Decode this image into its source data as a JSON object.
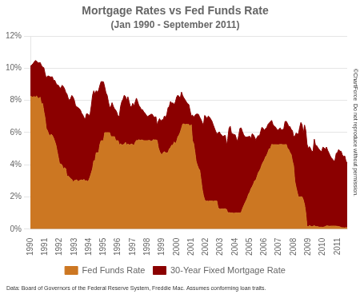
{
  "chart_data": {
    "type": "area",
    "title": "Mortgage Rates vs Fed Funds Rate",
    "subtitle": "(Jan 1990 - September 2011)",
    "annotations": [
      "Data: Board of Governors of the Federal Reserve System, Freddie Mac. Assumes conforming loan traits.",
      "©ChartForce  Do not reproduce without permission."
    ],
    "legend": "bottom",
    "grid": "y",
    "ylim": [
      0,
      12
    ],
    "yticks": [
      {
        "value": 0,
        "label": "0%"
      },
      {
        "value": 2,
        "label": "2%"
      },
      {
        "value": 4,
        "label": "4%"
      },
      {
        "value": 6,
        "label": "6%"
      },
      {
        "value": 8,
        "label": "8%"
      },
      {
        "value": 10,
        "label": "10%"
      },
      {
        "value": 12,
        "label": "12%"
      }
    ],
    "categories": [
      "1990",
      null,
      null,
      null,
      null,
      null,
      null,
      null,
      null,
      null,
      null,
      null,
      "1991",
      null,
      null,
      null,
      null,
      null,
      null,
      null,
      null,
      null,
      null,
      null,
      "1992",
      null,
      null,
      null,
      null,
      null,
      null,
      null,
      null,
      null,
      null,
      null,
      "1993",
      null,
      null,
      null,
      null,
      null,
      null,
      null,
      null,
      null,
      null,
      null,
      "1994",
      null,
      null,
      null,
      null,
      null,
      null,
      null,
      null,
      null,
      null,
      null,
      "1995",
      null,
      null,
      null,
      null,
      null,
      null,
      null,
      null,
      null,
      null,
      null,
      "1996",
      null,
      null,
      null,
      null,
      null,
      null,
      null,
      null,
      null,
      null,
      null,
      "1997",
      null,
      null,
      null,
      null,
      null,
      null,
      null,
      null,
      null,
      null,
      null,
      "1998",
      null,
      null,
      null,
      null,
      null,
      null,
      null,
      null,
      null,
      null,
      null,
      "1999",
      null,
      null,
      null,
      null,
      null,
      null,
      null,
      null,
      null,
      null,
      null,
      "2000",
      null,
      null,
      null,
      null,
      null,
      null,
      null,
      null,
      null,
      null,
      null,
      "2001",
      null,
      null,
      null,
      null,
      null,
      null,
      null,
      null,
      null,
      null,
      null,
      "2002",
      null,
      null,
      null,
      null,
      null,
      null,
      null,
      null,
      null,
      null,
      null,
      "2003",
      null,
      null,
      null,
      null,
      null,
      null,
      null,
      null,
      null,
      null,
      null,
      "2004",
      null,
      null,
      null,
      null,
      null,
      null,
      null,
      null,
      null,
      null,
      null,
      "2005",
      null,
      null,
      null,
      null,
      null,
      null,
      null,
      null,
      null,
      null,
      null,
      "2006",
      null,
      null,
      null,
      null,
      null,
      null,
      null,
      null,
      null,
      null,
      null,
      "2007",
      null,
      null,
      null,
      null,
      null,
      null,
      null,
      null,
      null,
      null,
      null,
      "2008",
      null,
      null,
      null,
      null,
      null,
      null,
      null,
      null,
      null,
      null,
      null,
      "2009",
      null,
      null,
      null,
      null,
      null,
      null,
      null,
      null,
      null,
      null,
      null,
      "2010",
      null,
      null,
      null,
      null,
      null,
      null,
      null,
      null,
      null,
      null,
      null,
      "2011",
      null,
      null,
      null,
      null,
      null,
      null,
      null,
      null
    ],
    "series": [
      {
        "name": "Fed Funds Rate",
        "color": "#CC7722",
        "values": [
          8.25,
          8.24,
          8.19,
          8.26,
          8.16,
          8.29,
          8.15,
          8.13,
          8.2,
          7.76,
          7.81,
          7.31,
          6.91,
          6.25,
          6.12,
          5.91,
          5.78,
          5.9,
          5.82,
          5.66,
          5.45,
          5.21,
          4.81,
          4.43,
          4.03,
          4.06,
          3.98,
          3.73,
          3.82,
          3.76,
          3.25,
          3.3,
          3.22,
          3.13,
          3.09,
          2.92,
          3.02,
          3.03,
          3.07,
          2.96,
          3.0,
          3.04,
          3.06,
          3.03,
          3.09,
          2.99,
          3.02,
          2.96,
          3.05,
          3.25,
          3.5,
          3.75,
          4.25,
          4.25,
          4.75,
          4.75,
          4.75,
          5.25,
          5.5,
          5.5,
          5.5,
          6.0,
          6.0,
          6.0,
          6.0,
          6.0,
          5.75,
          5.75,
          5.75,
          5.75,
          5.5,
          5.5,
          5.5,
          5.22,
          5.31,
          5.22,
          5.25,
          5.27,
          5.4,
          5.22,
          5.3,
          5.24,
          5.25,
          5.29,
          5.25,
          5.19,
          5.39,
          5.51,
          5.5,
          5.56,
          5.52,
          5.54,
          5.54,
          5.5,
          5.5,
          5.5,
          5.5,
          5.51,
          5.51,
          5.45,
          5.49,
          5.56,
          5.54,
          5.55,
          5.51,
          5.07,
          4.83,
          4.68,
          4.63,
          4.76,
          4.81,
          4.74,
          4.74,
          4.76,
          4.99,
          5.07,
          5.22,
          5.2,
          5.42,
          5.3,
          5.45,
          5.73,
          5.85,
          6.02,
          6.27,
          6.53,
          6.54,
          6.5,
          6.52,
          6.51,
          6.51,
          6.4,
          6.5,
          5.49,
          5.31,
          4.8,
          4.21,
          3.97,
          3.77,
          3.65,
          3.07,
          2.49,
          2.09,
          1.82,
          1.73,
          1.75,
          1.73,
          1.75,
          1.75,
          1.75,
          1.73,
          1.74,
          1.75,
          1.75,
          1.34,
          1.24,
          1.24,
          1.26,
          1.25,
          1.26,
          1.26,
          1.22,
          1.01,
          1.03,
          1.01,
          1.01,
          1.0,
          0.98,
          1.0,
          1.01,
          1.0,
          1.0,
          1.0,
          1.03,
          1.26,
          1.43,
          1.61,
          1.76,
          1.93,
          2.16,
          2.28,
          2.5,
          2.63,
          2.79,
          3.0,
          3.04,
          3.26,
          3.5,
          3.62,
          3.78,
          4.0,
          4.16,
          4.29,
          4.49,
          4.59,
          4.79,
          5.0,
          5.0,
          5.26,
          5.25,
          5.25,
          5.25,
          5.25,
          5.24,
          5.25,
          5.26,
          5.26,
          5.25,
          5.25,
          5.25,
          5.26,
          5.02,
          4.94,
          4.76,
          4.65,
          4.24,
          3.94,
          2.98,
          2.61,
          2.28,
          2.0,
          2.0,
          2.01,
          2.0,
          1.81,
          1.51,
          1.0,
          0.16,
          0.15,
          0.22,
          0.18,
          0.15,
          0.18,
          0.21,
          0.16,
          0.16,
          0.15,
          0.12,
          0.12,
          0.12,
          0.11,
          0.13,
          0.16,
          0.2,
          0.2,
          0.18,
          0.18,
          0.19,
          0.19,
          0.19,
          0.19,
          0.18,
          0.17,
          0.16,
          0.14,
          0.1,
          0.09,
          0.09,
          0.07,
          0.1,
          0.08
        ]
      },
      {
        "name": "30-Year Fixed Mortgage Rate",
        "color": "#8B0000",
        "values": [
          10.13,
          10.2,
          10.27,
          10.38,
          10.48,
          10.45,
          10.35,
          10.34,
          10.36,
          10.18,
          10.07,
          10.04,
          9.69,
          9.37,
          9.51,
          9.52,
          9.47,
          9.46,
          9.47,
          9.24,
          9.25,
          9.07,
          8.96,
          8.94,
          8.8,
          8.76,
          8.94,
          8.87,
          8.73,
          8.51,
          8.4,
          8.14,
          8.0,
          8.12,
          8.31,
          8.21,
          8.02,
          7.69,
          7.6,
          7.56,
          7.5,
          7.41,
          7.21,
          7.1,
          6.93,
          6.83,
          7.17,
          7.17,
          7.06,
          7.15,
          7.68,
          8.32,
          8.6,
          8.4,
          8.61,
          8.51,
          8.64,
          8.93,
          9.17,
          9.17,
          9.15,
          8.83,
          8.47,
          8.32,
          7.91,
          7.57,
          7.61,
          7.86,
          7.64,
          7.48,
          7.4,
          7.24,
          6.99,
          7.03,
          7.62,
          7.93,
          8.07,
          8.32,
          8.25,
          8.0,
          8.23,
          7.92,
          7.62,
          7.6,
          7.82,
          7.65,
          7.9,
          8.14,
          7.94,
          7.69,
          7.59,
          7.43,
          7.43,
          7.29,
          7.21,
          7.1,
          6.99,
          7.04,
          7.09,
          7.14,
          7.14,
          7.0,
          6.95,
          6.99,
          6.47,
          6.71,
          6.87,
          6.72,
          6.79,
          6.81,
          7.04,
          6.92,
          7.15,
          7.55,
          7.63,
          7.94,
          7.82,
          7.85,
          7.74,
          7.91,
          8.21,
          8.33,
          8.24,
          8.15,
          8.52,
          8.29,
          8.15,
          8.03,
          7.91,
          7.8,
          7.75,
          7.38,
          7.03,
          7.09,
          6.95,
          7.07,
          7.14,
          7.16,
          7.13,
          6.95,
          6.82,
          6.62,
          6.45,
          7.07,
          7.0,
          6.86,
          7.03,
          6.96,
          6.84,
          6.71,
          6.49,
          6.29,
          6.09,
          5.93,
          5.98,
          6.05,
          5.92,
          5.84,
          5.75,
          5.81,
          5.82,
          5.21,
          5.63,
          6.26,
          6.4,
          5.95,
          5.93,
          5.88,
          5.87,
          5.64,
          5.45,
          5.84,
          6.27,
          6.29,
          6.06,
          5.87,
          5.75,
          5.72,
          5.73,
          5.75,
          5.77,
          5.63,
          5.93,
          5.86,
          5.72,
          5.53,
          5.7,
          5.82,
          5.77,
          6.07,
          6.33,
          6.27,
          6.15,
          6.25,
          6.32,
          6.51,
          6.6,
          6.68,
          6.76,
          6.52,
          6.4,
          6.36,
          6.24,
          6.14,
          6.22,
          6.29,
          6.16,
          6.18,
          6.26,
          6.69,
          6.7,
          6.57,
          6.38,
          6.38,
          6.2,
          6.14,
          5.76,
          5.76,
          5.97,
          5.92,
          5.92,
          6.32,
          6.63,
          6.48,
          5.94,
          6.47,
          6.14,
          5.29,
          5.01,
          5.13,
          5.0,
          4.81,
          4.86,
          5.59,
          5.2,
          5.19,
          5.06,
          4.95,
          4.88,
          4.81,
          5.09,
          5.05,
          4.97,
          5.1,
          4.89,
          4.74,
          4.56,
          4.43,
          4.35,
          4.23,
          4.3,
          4.71,
          4.76,
          4.95,
          4.84,
          4.84,
          4.61,
          4.51,
          4.55,
          4.22,
          4.11
        ]
      }
    ]
  }
}
